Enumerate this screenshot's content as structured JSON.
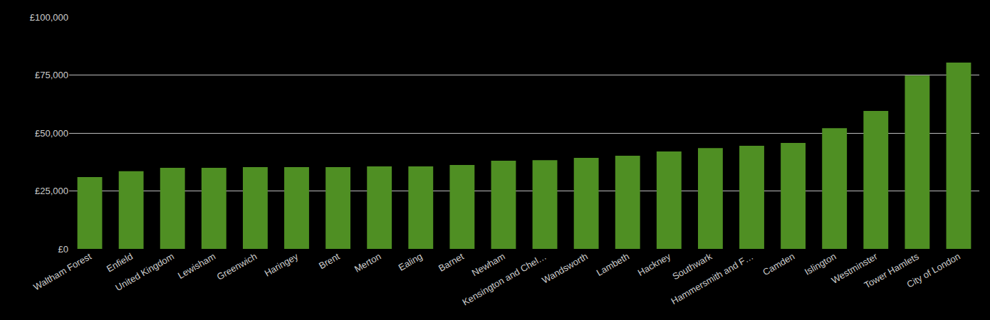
{
  "chart_data": {
    "type": "bar",
    "categories": [
      "Waltham Forest",
      "Enfield",
      "United Kingdom",
      "Lewisham",
      "Greenwich",
      "Haringey",
      "Brent",
      "Merton",
      "Ealing",
      "Barnet",
      "Newham",
      "Kensington and Chel…",
      "Wandsworth",
      "Lambeth",
      "Hackney",
      "Southwark",
      "Hammersmith and F…",
      "Camden",
      "Islington",
      "Westminster",
      "Tower Hamlets",
      "City of London"
    ],
    "values": [
      31000,
      33500,
      35000,
      35000,
      35300,
      35300,
      35300,
      35600,
      35600,
      36200,
      38000,
      38300,
      39300,
      40200,
      42000,
      43500,
      44500,
      45700,
      52100,
      59500,
      74800,
      80400
    ],
    "color": "#4f8f23",
    "ylim": [
      0,
      100000
    ],
    "yticks": [
      {
        "value": 0,
        "label": "£0"
      },
      {
        "value": 25000,
        "label": "£25,000"
      },
      {
        "value": 50000,
        "label": "£50,000"
      },
      {
        "value": 75000,
        "label": "£75,000"
      },
      {
        "value": 100000,
        "label": "£100,000"
      }
    ],
    "grid": true
  }
}
